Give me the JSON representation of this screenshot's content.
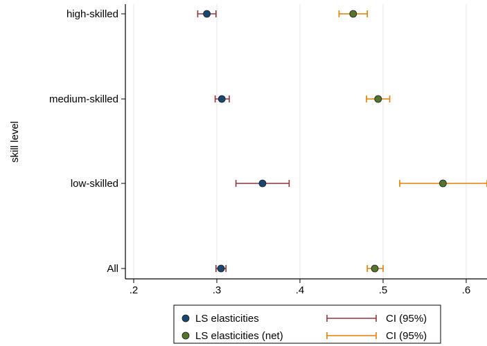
{
  "chart_data": {
    "type": "scatter",
    "ylabel": "skill level",
    "xlabel": "",
    "xlim": [
      0.19,
      0.625
    ],
    "x_ticks": [
      {
        "value": 0.2,
        "label": ".2"
      },
      {
        "value": 0.3,
        "label": ".3"
      },
      {
        "value": 0.4,
        "label": ".4"
      },
      {
        "value": 0.5,
        "label": ".5"
      },
      {
        "value": 0.6,
        "label": ".6"
      }
    ],
    "categories": [
      "high-skilled",
      "medium-skilled",
      "low-skilled",
      "All"
    ],
    "grid": true,
    "series": [
      {
        "name": "LS elasticities",
        "color": "#1a476f",
        "ci_name": "CI (95%)",
        "ci_color": "#90353b",
        "points": [
          {
            "category": "high-skilled",
            "value": 0.288,
            "ci": [
              0.277,
              0.299
            ]
          },
          {
            "category": "medium-skilled",
            "value": 0.306,
            "ci": [
              0.298,
              0.315
            ]
          },
          {
            "category": "low-skilled",
            "value": 0.355,
            "ci": [
              0.323,
              0.387
            ]
          },
          {
            "category": "All",
            "value": 0.305,
            "ci": [
              0.299,
              0.311
            ]
          }
        ]
      },
      {
        "name": "LS elasticities (net)",
        "color": "#55752f",
        "ci_name": "CI (95%)",
        "ci_color": "#e37e00",
        "points": [
          {
            "category": "high-skilled",
            "value": 0.464,
            "ci": [
              0.447,
              0.481
            ]
          },
          {
            "category": "medium-skilled",
            "value": 0.494,
            "ci": [
              0.48,
              0.508
            ]
          },
          {
            "category": "low-skilled",
            "value": 0.572,
            "ci": [
              0.52,
              0.625
            ]
          },
          {
            "category": "All",
            "value": 0.49,
            "ci": [
              0.481,
              0.5
            ]
          }
        ]
      }
    ],
    "legend_position": "bottom"
  }
}
